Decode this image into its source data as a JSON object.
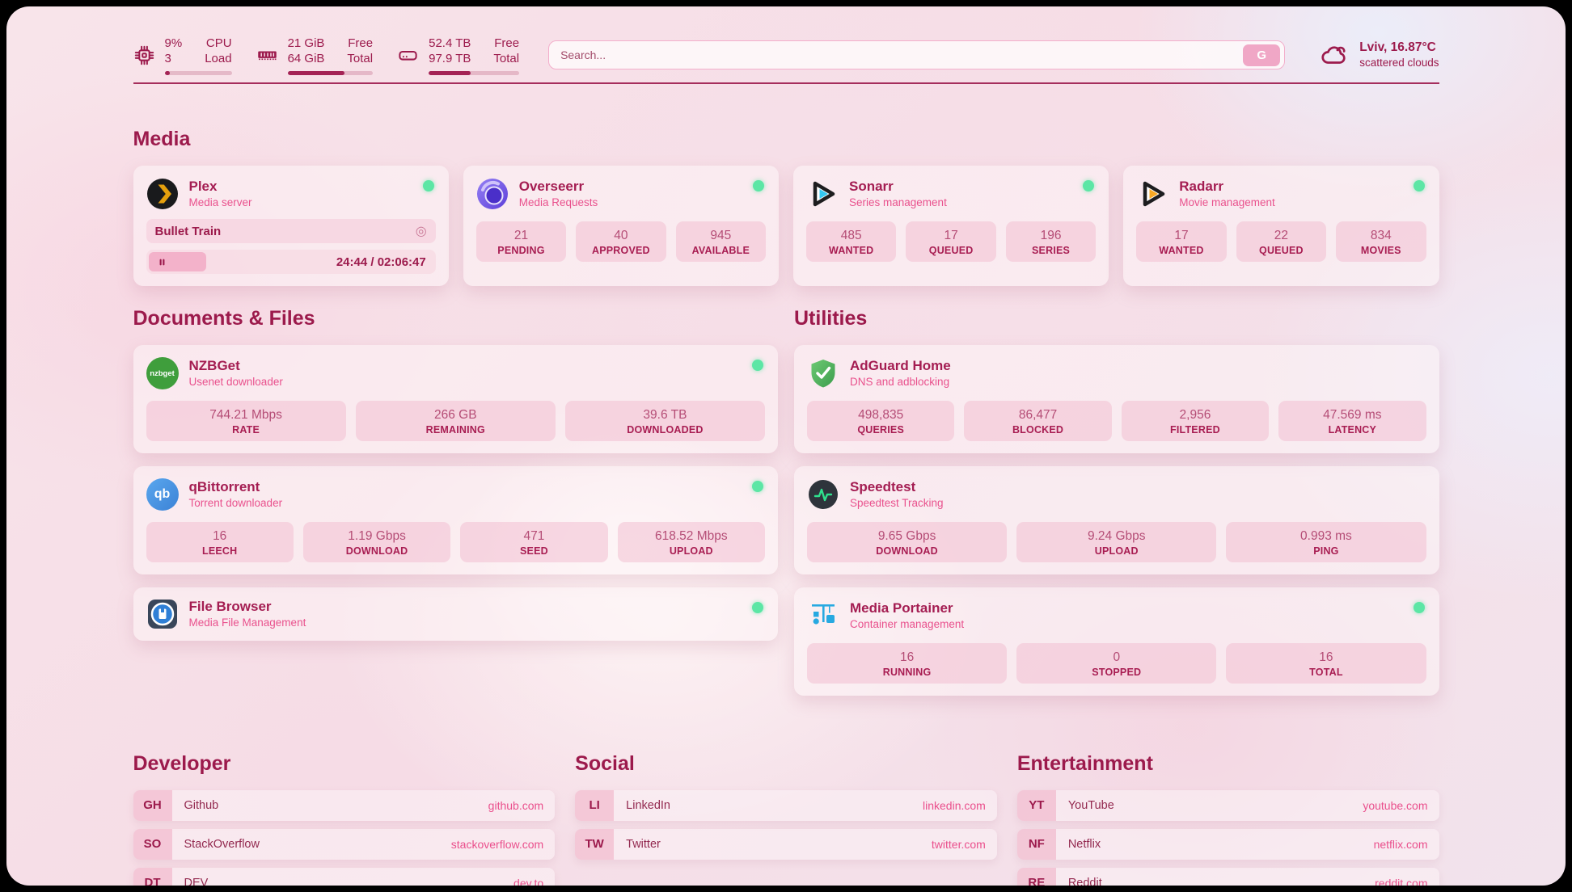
{
  "colors": {
    "accent_maroon": "#9c1a4c",
    "accent_pink": "#ea4f8c",
    "status_green": "#5ce6a5",
    "tile_pink": "#f3c0d1",
    "plex_yellow": "#e5a00d",
    "sonarr_blue": "#33c7f1",
    "radarr_orange": "#f7a825",
    "adguard_green": "#4caf50",
    "nzbget_green": "#3f9e3c",
    "qbittorrent_blue": "#3b82d6",
    "portainer_blue": "#27a9e1"
  },
  "icons": [
    "cpu-chip-icon",
    "ram-icon",
    "disk-icon",
    "search-icon",
    "cloud-icon",
    "pause-icon",
    "disc-icon",
    "status-dot"
  ],
  "header": {
    "cpu": {
      "percent": "9%",
      "load1": "3",
      "label_line1": "CPU",
      "label_line2": "Load",
      "progress_pct": 8
    },
    "memory": {
      "free": "21 GiB",
      "total": "64 GiB",
      "label_line1": "Free",
      "label_line2": "Total",
      "progress_pct": 67
    },
    "disk": {
      "free": "52.4 TB",
      "total": "97.9 TB",
      "label_line1": "Free",
      "label_line2": "Total",
      "progress_pct": 46
    },
    "search": {
      "placeholder": "Search...",
      "button_label": "G"
    },
    "weather": {
      "title": "Lviv, 16.87°C",
      "subtitle": "scattered clouds"
    }
  },
  "sections": {
    "media": {
      "title": "Media",
      "cards": {
        "plex": {
          "name": "Plex",
          "subtitle": "Media server",
          "online": true,
          "player": {
            "title": "Bullet Train",
            "time_display": "24:44 / 02:06:47",
            "progress_pct": 20
          }
        },
        "overseerr": {
          "name": "Overseerr",
          "subtitle": "Media Requests",
          "online": true,
          "stats": [
            {
              "value": "21",
              "label": "PENDING"
            },
            {
              "value": "40",
              "label": "APPROVED"
            },
            {
              "value": "945",
              "label": "AVAILABLE"
            }
          ]
        },
        "sonarr": {
          "name": "Sonarr",
          "subtitle": "Series management",
          "online": true,
          "stats": [
            {
              "value": "485",
              "label": "WANTED"
            },
            {
              "value": "17",
              "label": "QUEUED"
            },
            {
              "value": "196",
              "label": "SERIES"
            }
          ]
        },
        "radarr": {
          "name": "Radarr",
          "subtitle": "Movie management",
          "online": true,
          "stats": [
            {
              "value": "17",
              "label": "WANTED"
            },
            {
              "value": "22",
              "label": "QUEUED"
            },
            {
              "value": "834",
              "label": "MOVIES"
            }
          ]
        }
      }
    },
    "documents": {
      "title": "Documents & Files",
      "cards": {
        "nzbget": {
          "name": "NZBGet",
          "subtitle": "Usenet downloader",
          "logo_text": "nzbget",
          "online": true,
          "stats": [
            {
              "value": "744.21 Mbps",
              "label": "RATE"
            },
            {
              "value": "266 GB",
              "label": "REMAINING"
            },
            {
              "value": "39.6 TB",
              "label": "DOWNLOADED"
            }
          ]
        },
        "qbittorrent": {
          "name": "qBittorrent",
          "subtitle": "Torrent downloader",
          "logo_text": "qb",
          "online": true,
          "stats": [
            {
              "value": "16",
              "label": "LEECH"
            },
            {
              "value": "1.19 Gbps",
              "label": "DOWNLOAD"
            },
            {
              "value": "471",
              "label": "SEED"
            },
            {
              "value": "618.52 Mbps",
              "label": "UPLOAD"
            }
          ]
        },
        "filebrowser": {
          "name": "File Browser",
          "subtitle": "Media File Management",
          "online": true
        }
      }
    },
    "utilities": {
      "title": "Utilities",
      "cards": {
        "adguard": {
          "name": "AdGuard Home",
          "subtitle": "DNS and adblocking",
          "stats": [
            {
              "value": "498,835",
              "label": "QUERIES"
            },
            {
              "value": "86,477",
              "label": "BLOCKED"
            },
            {
              "value": "2,956",
              "label": "FILTERED"
            },
            {
              "value": "47.569 ms",
              "label": "LATENCY"
            }
          ]
        },
        "speedtest": {
          "name": "Speedtest",
          "subtitle": "Speedtest Tracking",
          "stats": [
            {
              "value": "9.65 Gbps",
              "label": "DOWNLOAD"
            },
            {
              "value": "9.24 Gbps",
              "label": "UPLOAD"
            },
            {
              "value": "0.993 ms",
              "label": "PING"
            }
          ]
        },
        "portainer": {
          "name": "Media Portainer",
          "subtitle": "Container management",
          "online": true,
          "stats": [
            {
              "value": "16",
              "label": "RUNNING"
            },
            {
              "value": "0",
              "label": "STOPPED"
            },
            {
              "value": "16",
              "label": "TOTAL"
            }
          ]
        }
      }
    },
    "developer": {
      "title": "Developer",
      "links": [
        {
          "abbr": "GH",
          "name": "Github",
          "url": "github.com"
        },
        {
          "abbr": "SO",
          "name": "StackOverflow",
          "url": "stackoverflow.com"
        },
        {
          "abbr": "DT",
          "name": "DEV",
          "url": "dev.to"
        }
      ]
    },
    "social": {
      "title": "Social",
      "links": [
        {
          "abbr": "LI",
          "name": "LinkedIn",
          "url": "linkedin.com"
        },
        {
          "abbr": "TW",
          "name": "Twitter",
          "url": "twitter.com"
        }
      ]
    },
    "entertainment": {
      "title": "Entertainment",
      "links": [
        {
          "abbr": "YT",
          "name": "YouTube",
          "url": "youtube.com"
        },
        {
          "abbr": "NF",
          "name": "Netflix",
          "url": "netflix.com"
        },
        {
          "abbr": "RE",
          "name": "Reddit",
          "url": "reddit.com"
        }
      ]
    }
  }
}
